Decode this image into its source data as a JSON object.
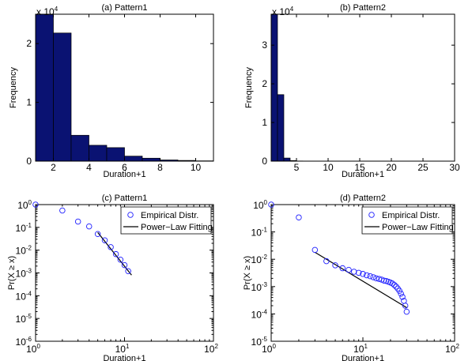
{
  "colors": {
    "bar_fill": "#0a1272",
    "marker": "#2020ff",
    "fit_line": "#000000",
    "axes": "#000000"
  },
  "chart_data": [
    {
      "type": "bar",
      "title": "(a) Pattern1",
      "xlabel": "Duration+1",
      "ylabel": "Frequency",
      "y_multiplier_label": {
        "base": "x 10",
        "exp": "4"
      },
      "xlim": [
        1,
        11
      ],
      "ylim": [
        0,
        2.5
      ],
      "xticks": [
        2,
        4,
        6,
        8,
        10
      ],
      "yticks": [
        0,
        1,
        2
      ],
      "bin_edges": [
        1,
        2,
        3,
        4,
        5,
        6,
        7,
        8,
        9,
        10,
        11
      ],
      "values": [
        2.51,
        2.18,
        0.44,
        0.27,
        0.23,
        0.085,
        0.05,
        0.02,
        0.012,
        0.005
      ]
    },
    {
      "type": "bar",
      "title": "(b) Pattern2",
      "xlabel": "Duration+1",
      "ylabel": "Frequency",
      "y_multiplier_label": {
        "base": "x 10",
        "exp": "4"
      },
      "xlim": [
        1,
        30
      ],
      "ylim": [
        0,
        3.8
      ],
      "xticks": [
        5,
        10,
        15,
        20,
        25,
        30
      ],
      "yticks": [
        0,
        1,
        2,
        3
      ],
      "bin_edges": [
        1,
        2,
        3,
        4,
        5,
        6
      ],
      "values": [
        3.8,
        1.72,
        0.08,
        0.015,
        0.004
      ]
    },
    {
      "type": "scatter",
      "title": "(c) Pattern1",
      "xlabel": "Duration+1",
      "ylabel": "Pr(X ≥ x)",
      "xscale": "log",
      "yscale": "log",
      "xlim": [
        1,
        100
      ],
      "ylim": [
        1e-06,
        1
      ],
      "xtick_exps": [
        "0",
        "1",
        "2"
      ],
      "ytick_exps": [
        "0",
        "-1",
        "-2",
        "-3",
        "-4",
        "-5",
        "-6"
      ],
      "legend": {
        "position": "top-right",
        "entries": [
          "Empirical Distr.",
          "Power−Law Fitting"
        ]
      },
      "series": [
        {
          "name": "Empirical Distr.",
          "x": [
            1,
            2,
            3,
            4,
            5,
            6,
            7,
            8,
            9,
            10,
            11
          ],
          "y": [
            1.0,
            0.55,
            0.18,
            0.11,
            0.051,
            0.027,
            0.0135,
            0.0067,
            0.0038,
            0.0022,
            0.0012
          ]
        },
        {
          "name": "Power−Law Fitting",
          "x": [
            5,
            12
          ],
          "y": [
            0.06,
            0.0008
          ]
        }
      ]
    },
    {
      "type": "scatter",
      "title": "(d) Pattern2",
      "xlabel": "Duration+1",
      "ylabel": "Pr(X ≥ x)",
      "xscale": "log",
      "yscale": "log",
      "xlim": [
        1,
        100
      ],
      "ylim": [
        1e-05,
        1
      ],
      "xtick_exps": [
        "0",
        "1",
        "2"
      ],
      "ytick_exps": [
        "0",
        "-1",
        "-2",
        "-3",
        "-4",
        "-5"
      ],
      "legend": {
        "position": "top-right",
        "entries": [
          "Empirical Distr.",
          "Power−Law Fitting"
        ]
      },
      "series": [
        {
          "name": "Empirical Distr.",
          "x": [
            1,
            2,
            3,
            4,
            5,
            6,
            7,
            8,
            9,
            10,
            11,
            12,
            13,
            14,
            15,
            16,
            17,
            18,
            19,
            20,
            21,
            22,
            23,
            24,
            25,
            26,
            27,
            28,
            29,
            30
          ],
          "y": [
            1.0,
            0.34,
            0.022,
            0.0085,
            0.006,
            0.0047,
            0.0041,
            0.0035,
            0.0032,
            0.0029,
            0.0026,
            0.0024,
            0.0022,
            0.002,
            0.0019,
            0.0018,
            0.00165,
            0.0016,
            0.0015,
            0.0014,
            0.0013,
            0.00115,
            0.001,
            0.00085,
            0.0007,
            0.00055,
            0.00042,
            0.0003,
            0.0002,
            0.00012
          ]
        },
        {
          "name": "Power−Law Fitting",
          "x": [
            3,
            30
          ],
          "y": [
            0.018,
            0.00017
          ]
        }
      ]
    }
  ]
}
